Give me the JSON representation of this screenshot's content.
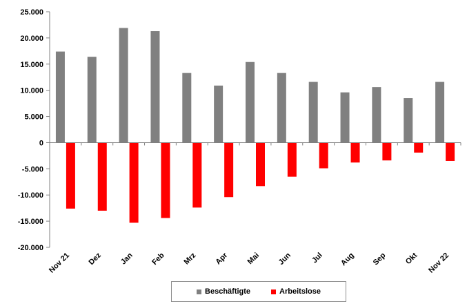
{
  "chart_data": {
    "type": "bar",
    "categories": [
      "Nov 21",
      "Dez",
      "Jan",
      "Feb",
      "Mrz",
      "Apr",
      "Mai",
      "Jun",
      "Jul",
      "Aug",
      "Sep",
      "Okt",
      "Nov 22"
    ],
    "series": [
      {
        "name": "Beschäftigte",
        "color": "#808080",
        "values": [
          17400,
          16400,
          21900,
          21300,
          13300,
          10900,
          15400,
          13300,
          11600,
          9600,
          10600,
          8500,
          11600
        ]
      },
      {
        "name": "Arbeitslose",
        "color": "#ff0000",
        "values": [
          -12600,
          -13000,
          -15300,
          -14400,
          -12400,
          -10400,
          -8300,
          -6500,
          -4900,
          -3800,
          -3400,
          -1900,
          -3500
        ]
      }
    ],
    "yticks": [
      "25.000",
      "20.000",
      "15.000",
      "10.000",
      "5.000",
      "0",
      "-5.000",
      "-10.000",
      "-15.000",
      "-20.000"
    ],
    "ylim": [
      -20000,
      25000
    ],
    "grid": false,
    "legend_position": "bottom",
    "title": "",
    "xlabel": "",
    "ylabel": ""
  }
}
